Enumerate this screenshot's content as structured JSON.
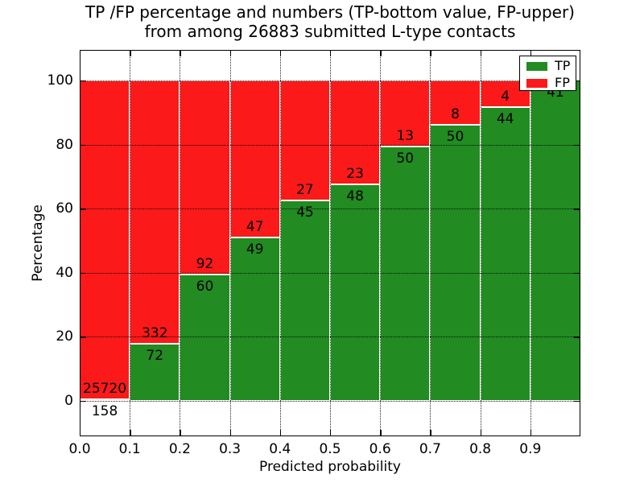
{
  "title": {
    "line1": "TP /FP percentage and numbers (TP-bottom value, FP-upper)",
    "line2": "from among 26883 submitted L-type contacts"
  },
  "axes": {
    "xlabel": "Predicted probability",
    "ylabel": "Percentage",
    "x_tick_labels": [
      "0.0",
      "0.1",
      "0.2",
      "0.3",
      "0.4",
      "0.5",
      "0.6",
      "0.7",
      "0.8",
      "0.9"
    ],
    "y_tick_labels": [
      "0",
      "20",
      "40",
      "60",
      "80",
      "100"
    ],
    "y_tick_values": [
      0,
      20,
      40,
      60,
      80,
      100
    ]
  },
  "legend": {
    "items": [
      {
        "label": "TP",
        "color": "#228b22"
      },
      {
        "label": "FP",
        "color": "#fb1919"
      }
    ],
    "position": "upper right"
  },
  "colors": {
    "tp": "#228b22",
    "fp": "#fb1919",
    "grid": "#000000",
    "frame": "#000000",
    "background": "#ffffff"
  },
  "chart_data": {
    "type": "bar",
    "stacked": true,
    "normalized_to_percent": true,
    "title": "TP /FP percentage and numbers (TP-bottom value, FP-upper) from among 26883 submitted L-type contacts",
    "xlabel": "Predicted probability",
    "ylabel": "Percentage",
    "total_contacts": 26883,
    "bin_width": 0.1,
    "bin_starts": [
      0.0,
      0.1,
      0.2,
      0.3,
      0.4,
      0.5,
      0.6,
      0.7,
      0.8,
      0.9
    ],
    "categories": [
      "0.0-0.1",
      "0.1-0.2",
      "0.2-0.3",
      "0.3-0.4",
      "0.4-0.5",
      "0.5-0.6",
      "0.6-0.7",
      "0.7-0.8",
      "0.8-0.9",
      "0.9-1.0"
    ],
    "series": [
      {
        "name": "TP",
        "counts": [
          158,
          72,
          60,
          49,
          45,
          48,
          50,
          50,
          44,
          41
        ],
        "color": "#228b22",
        "position": "bottom"
      },
      {
        "name": "FP",
        "counts": [
          25720,
          332,
          92,
          47,
          27,
          23,
          13,
          8,
          4,
          0
        ],
        "color": "#fb1919",
        "position": "top"
      }
    ],
    "tp_percent": [
      0.61,
      17.82,
      39.47,
      51.04,
      62.5,
      67.61,
      79.37,
      86.21,
      91.67,
      100.0
    ],
    "bar_total_percent": 100,
    "xlim": [
      0.0,
      1.0
    ],
    "ylim": [
      -11.1,
      109.5
    ],
    "grid": "dotted, drawn above bars",
    "legend_position": "upper right"
  }
}
